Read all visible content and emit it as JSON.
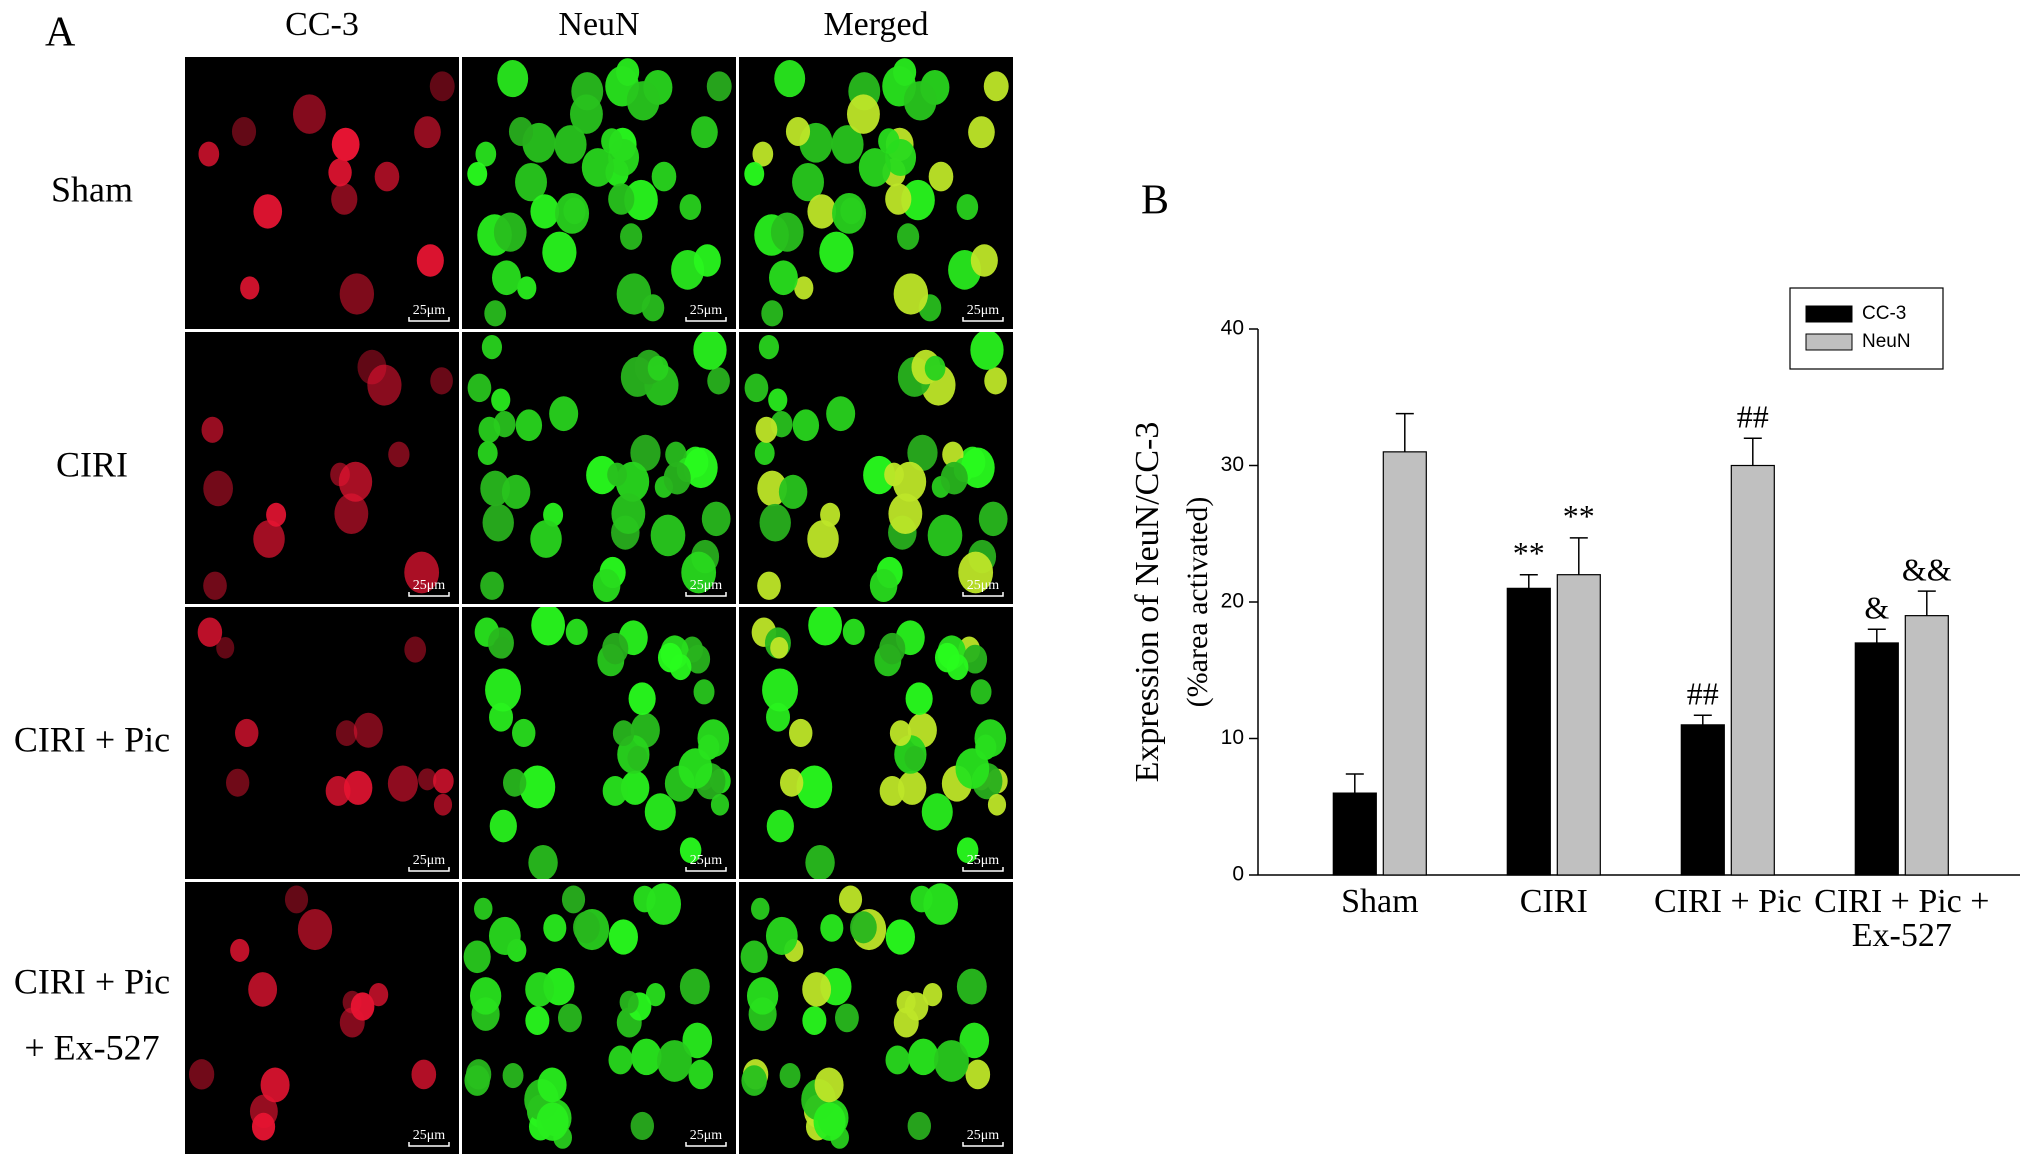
{
  "panel_a": {
    "label": "A",
    "columns": [
      "CC-3",
      "NeuN",
      "Merged"
    ],
    "rows": [
      [
        "Sham"
      ],
      [
        "CIRI"
      ],
      [
        "CIRI + Pic"
      ],
      [
        "CIRI + Pic",
        "+ Ex-527"
      ]
    ],
    "scale_bar": "25μm"
  },
  "chart_data": {
    "type": "bar",
    "panel_label": "B",
    "y_label": [
      "Expression of NeuN/CC-3",
      "(%area activated)"
    ],
    "categories": [
      "Sham",
      "CIRI",
      "CIRI + Pic",
      "CIRI + Pic + Ex-527"
    ],
    "series": [
      {
        "name": "CC-3",
        "color": "#000000",
        "values": [
          6,
          21,
          11,
          17
        ],
        "errors": [
          1.4,
          1,
          0.7,
          1
        ],
        "annotations": [
          null,
          "**",
          "##",
          "&"
        ]
      },
      {
        "name": "NeuN",
        "color": "#c0c0c0",
        "values": [
          31,
          22,
          30,
          19
        ],
        "errors": [
          2.8,
          2.7,
          2,
          1.8
        ],
        "annotations": [
          null,
          "**",
          "##",
          "&&"
        ]
      }
    ],
    "ylim": [
      0,
      40
    ],
    "yticks": [
      0,
      10,
      20,
      30,
      40
    ],
    "grid": false,
    "legend": "top-right"
  }
}
